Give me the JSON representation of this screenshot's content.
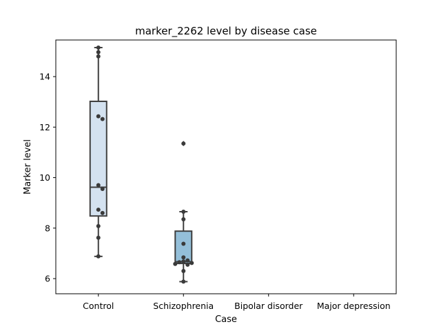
{
  "chart_data": {
    "type": "box",
    "title": "marker_2262 level by disease case",
    "xlabel": "Case",
    "ylabel": "Marker level",
    "categories": [
      "Control",
      "Schizophrenia",
      "Bipolar disorder",
      "Major depression"
    ],
    "ylim": [
      5.4,
      15.45
    ],
    "yticks": [
      6,
      8,
      10,
      12,
      14
    ],
    "ytick_labels": [
      "6",
      "8",
      "10",
      "12",
      "14"
    ],
    "grid": false,
    "legend": "none",
    "boxes": [
      {
        "category": "Control",
        "color": "#d4e2f0",
        "q1": 8.48,
        "median": 9.62,
        "q3": 13.02,
        "whisker_low": 6.88,
        "whisker_high": 15.15,
        "outliers": [],
        "points": [
          15.15,
          14.97,
          14.8,
          12.43,
          12.32,
          9.7,
          9.55,
          8.73,
          8.6,
          8.08,
          7.62,
          6.88
        ]
      },
      {
        "category": "Schizophrenia",
        "color": "#94bfd9",
        "q1": 6.6,
        "median": 6.67,
        "q3": 7.88,
        "whisker_low": 5.88,
        "whisker_high": 8.65,
        "outliers": [
          11.35
        ],
        "points": [
          11.35,
          8.65,
          8.35,
          7.38,
          6.84,
          6.72,
          6.68,
          6.65,
          6.62,
          6.58,
          6.55,
          6.3,
          5.88
        ]
      },
      {
        "category": "Bipolar disorder",
        "color": "#5b9ec9",
        "q1": null,
        "median": null,
        "q3": null,
        "whisker_low": null,
        "whisker_high": null,
        "outliers": [],
        "points": []
      },
      {
        "category": "Major depression",
        "color": "#2a7ab8",
        "q1": null,
        "median": null,
        "q3": null,
        "whisker_low": null,
        "whisker_high": null,
        "outliers": [],
        "points": []
      }
    ],
    "colors": {
      "box_edge": "#3f3f3f",
      "point": "#3a3a3a",
      "axes": "#000000"
    }
  }
}
